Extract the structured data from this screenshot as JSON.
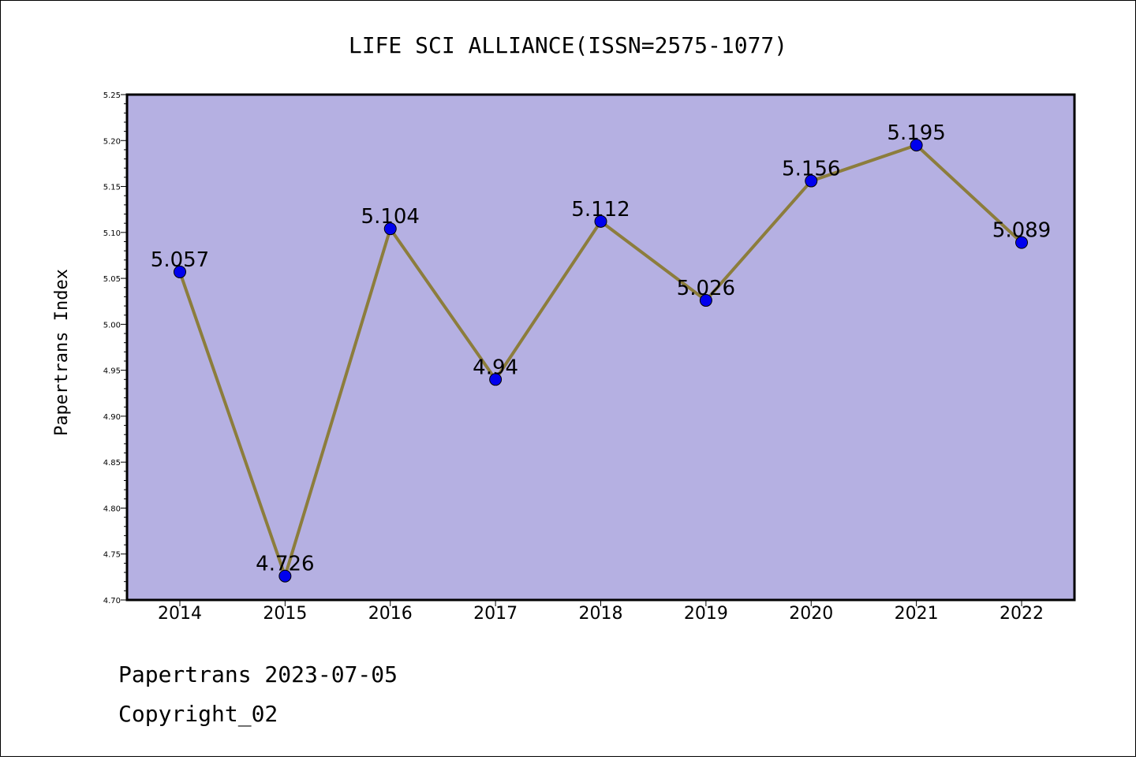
{
  "chart_data": {
    "type": "line",
    "title": "LIFE SCI ALLIANCE(ISSN=2575-1077)",
    "xlabel": "",
    "ylabel": "Papertrans Index",
    "categories": [
      "2014",
      "2015",
      "2016",
      "2017",
      "2018",
      "2019",
      "2020",
      "2021",
      "2022"
    ],
    "series": [
      {
        "values": [
          5.057,
          4.726,
          5.104,
          4.94,
          5.112,
          5.026,
          5.156,
          5.195,
          5.089
        ]
      }
    ],
    "data_labels": [
      "5.057",
      "4.726",
      "5.104",
      "4.94",
      "5.112",
      "5.026",
      "5.156",
      "5.195",
      "5.089"
    ],
    "ylim": [
      4.7,
      5.25
    ],
    "yticks": [
      "4.70",
      "4.75",
      "4.80",
      "4.85",
      "4.90",
      "4.95",
      "5.00",
      "5.05",
      "5.10",
      "5.15",
      "5.20",
      "5.25"
    ],
    "grid": false,
    "legend": "none",
    "colors": {
      "plot_background": "#b5b0e2",
      "line": "#8c7d3c",
      "marker": "#0000ee"
    }
  },
  "footer": {
    "line1": "Papertrans 2023-07-05",
    "line2": "Copyright_02"
  }
}
